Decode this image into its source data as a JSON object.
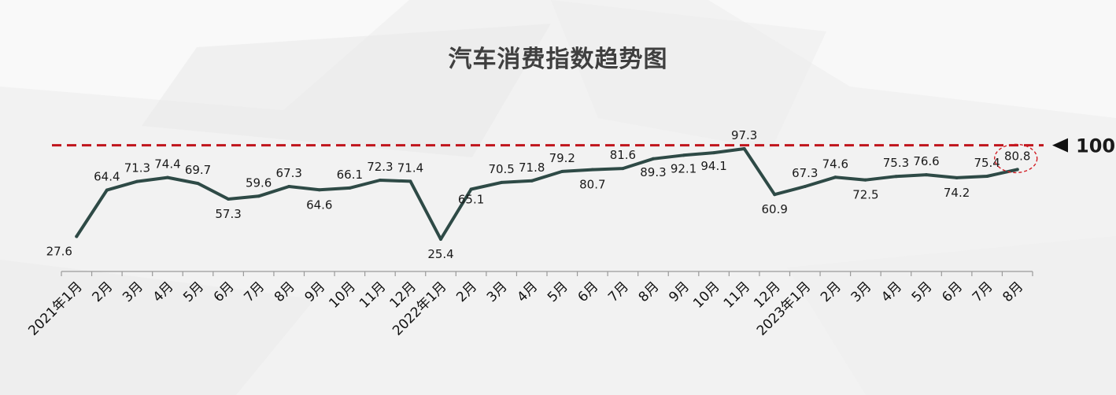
{
  "chart_data": {
    "type": "line",
    "title": "汽车消费指数趋势图",
    "xlabel": "",
    "ylabel": "",
    "categories": [
      "2021年1月",
      "2月",
      "3月",
      "4月",
      "5月",
      "6月",
      "7月",
      "8月",
      "9月",
      "10月",
      "11月",
      "12月",
      "2022年1月",
      "2月",
      "3月",
      "4月",
      "5月",
      "6月",
      "7月",
      "8月",
      "9月",
      "10月",
      "11月",
      "12月",
      "2023年1月",
      "2月",
      "3月",
      "4月",
      "5月",
      "6月",
      "7月",
      "8月"
    ],
    "series": [
      {
        "values": [
          27.6,
          64.4,
          71.3,
          74.4,
          69.7,
          57.3,
          59.6,
          67.3,
          64.6,
          66.1,
          72.3,
          71.4,
          25.4,
          65.1,
          70.5,
          71.8,
          79.2,
          80.7,
          81.6,
          89.3,
          92.1,
          94.1,
          97.3,
          60.9,
          67.3,
          74.6,
          72.5,
          75.3,
          76.6,
          74.2,
          75.4,
          80.8
        ]
      }
    ],
    "reference_line": {
      "value": 100,
      "label": "100",
      "color": "#c0141c",
      "style": "dashed"
    },
    "highlight_point": {
      "category": "8月",
      "value": 80.8,
      "marker": "dashed red ellipse"
    },
    "line_color": "#2e4a46",
    "grid": false,
    "legend": "none"
  }
}
